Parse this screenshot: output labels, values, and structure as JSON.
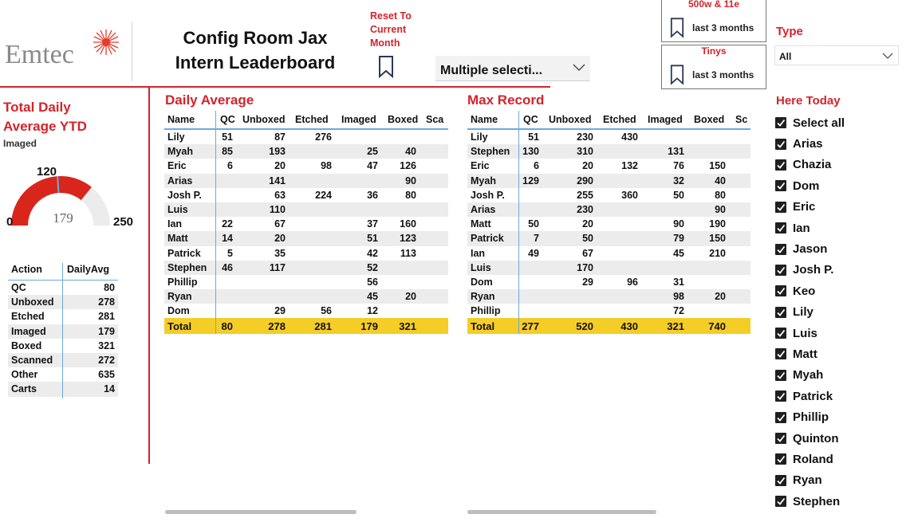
{
  "logo": {
    "text": "Emtec"
  },
  "header": {
    "title_line1": "Config Room Jax",
    "title_line2": "Intern Leaderboard",
    "reset_label": "Reset To Current Month",
    "date_filter": "Multiple selecti..."
  },
  "bookmarks": [
    {
      "title": "500w & 11e",
      "sub": "last 3 months"
    },
    {
      "title": "Tinys",
      "sub": "last 3 months"
    }
  ],
  "type_filter": {
    "label": "Type",
    "value": "All"
  },
  "kpi": {
    "title": "Total Daily Average YTD",
    "subtitle": "Imaged",
    "gauge": {
      "min": "0",
      "max": "250",
      "target": "120",
      "value": "179",
      "fill_fraction": 0.716,
      "target_fraction": 0.48
    }
  },
  "action_table": {
    "headers": [
      "Action",
      "DailyAvg"
    ],
    "rows": [
      [
        "QC",
        "80"
      ],
      [
        "Unboxed",
        "278"
      ],
      [
        "Etched",
        "281"
      ],
      [
        "Imaged",
        "179"
      ],
      [
        "Boxed",
        "321"
      ],
      [
        "Scanned",
        "272"
      ],
      [
        "Other",
        "635"
      ],
      [
        "Carts",
        "14"
      ]
    ]
  },
  "daily_average": {
    "title": "Daily Average",
    "headers": [
      "Name",
      "QC",
      "Unboxed",
      "Etched",
      "Imaged",
      "Boxed",
      "Sca"
    ],
    "rows": [
      [
        "Lily",
        "51",
        "87",
        "276",
        "",
        "",
        ""
      ],
      [
        "Myah",
        "85",
        "193",
        "",
        "25",
        "40",
        ""
      ],
      [
        "Eric",
        "6",
        "20",
        "98",
        "47",
        "126",
        ""
      ],
      [
        "Arias",
        "",
        "141",
        "",
        "",
        "90",
        ""
      ],
      [
        "Josh P.",
        "",
        "63",
        "224",
        "36",
        "80",
        ""
      ],
      [
        "Luis",
        "",
        "110",
        "",
        "",
        "",
        ""
      ],
      [
        "Ian",
        "22",
        "67",
        "",
        "37",
        "160",
        ""
      ],
      [
        "Matt",
        "14",
        "20",
        "",
        "51",
        "123",
        ""
      ],
      [
        "Patrick",
        "5",
        "35",
        "",
        "42",
        "113",
        ""
      ],
      [
        "Stephen",
        "46",
        "117",
        "",
        "52",
        "",
        ""
      ],
      [
        "Phillip",
        "",
        "",
        "",
        "56",
        "",
        ""
      ],
      [
        "Ryan",
        "",
        "",
        "",
        "45",
        "20",
        ""
      ],
      [
        "Dom",
        "",
        "29",
        "56",
        "12",
        "",
        ""
      ]
    ],
    "total": [
      "Total",
      "80",
      "278",
      "281",
      "179",
      "321",
      ""
    ]
  },
  "max_record": {
    "title": "Max Record",
    "headers": [
      "Name",
      "QC",
      "Unboxed",
      "Etched",
      "Imaged",
      "Boxed",
      "Sc"
    ],
    "rows": [
      [
        "Lily",
        "51",
        "230",
        "430",
        "",
        "",
        ""
      ],
      [
        "Stephen",
        "130",
        "310",
        "",
        "131",
        "",
        ""
      ],
      [
        "Eric",
        "6",
        "20",
        "132",
        "76",
        "150",
        ""
      ],
      [
        "Myah",
        "129",
        "290",
        "",
        "32",
        "40",
        ""
      ],
      [
        "Josh P.",
        "",
        "255",
        "360",
        "50",
        "80",
        ""
      ],
      [
        "Arias",
        "",
        "230",
        "",
        "",
        "90",
        ""
      ],
      [
        "Matt",
        "50",
        "20",
        "",
        "90",
        "190",
        ""
      ],
      [
        "Patrick",
        "7",
        "50",
        "",
        "79",
        "150",
        ""
      ],
      [
        "Ian",
        "49",
        "67",
        "",
        "45",
        "210",
        ""
      ],
      [
        "Luis",
        "",
        "170",
        "",
        "",
        "",
        ""
      ],
      [
        "Dom",
        "",
        "29",
        "96",
        "31",
        "",
        ""
      ],
      [
        "Ryan",
        "",
        "",
        "",
        "98",
        "20",
        ""
      ],
      [
        "Phillip",
        "",
        "",
        "",
        "72",
        "",
        ""
      ]
    ],
    "total": [
      "Total",
      "277",
      "520",
      "430",
      "321",
      "740",
      ""
    ]
  },
  "here_today": {
    "label": "Here Today",
    "items": [
      "Select all",
      "Arias",
      "Chazia",
      "Dom",
      "Eric",
      "Ian",
      "Jason",
      "Josh P.",
      "Keo",
      "Lily",
      "Luis",
      "Matt",
      "Myah",
      "Patrick",
      "Phillip",
      "Quinton",
      "Roland",
      "Ryan",
      "Stephen"
    ]
  },
  "colors": {
    "accent": "#d4232b",
    "total_row": "#f5cd27",
    "grid_line": "#6aa9e0",
    "gauge_fill": "#d9261c",
    "gauge_track": "#ececec"
  }
}
